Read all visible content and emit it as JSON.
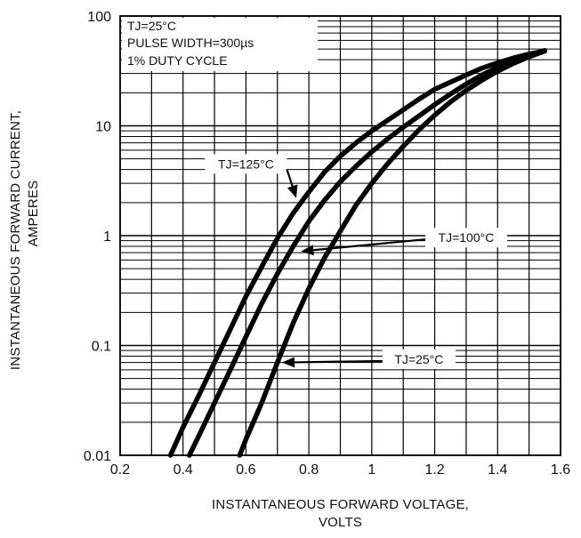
{
  "chart_data": {
    "type": "line",
    "title": "",
    "xlabel_line1": "INSTANTANEOUS FORWARD VOLTAGE,",
    "xlabel_line2": "VOLTS",
    "ylabel_line1": "INSTANTANEOUS FORWARD CURRENT,",
    "ylabel_line2": "AMPERES",
    "xlim": [
      0.2,
      1.6
    ],
    "ylim": [
      0.01,
      100
    ],
    "y_scale": "log",
    "grid": true,
    "x_ticks": [
      "0.2",
      "0.4",
      "0.6",
      "0.8",
      "1",
      "1.2",
      "1.4",
      "1.6"
    ],
    "x_tick_values": [
      0.2,
      0.4,
      0.6,
      0.8,
      1.0,
      1.2,
      1.4,
      1.6
    ],
    "y_ticks": [
      "0.01",
      "0.1",
      "1",
      "10",
      "100"
    ],
    "y_tick_values": [
      0.01,
      0.1,
      1,
      10,
      100
    ],
    "conditions": {
      "line1": "TJ=25°C",
      "line2": "PULSE WIDTH=300µs",
      "line3": "1% DUTY CYCLE"
    },
    "series": [
      {
        "name": "TJ=125°C",
        "label_text": "TJ=125°C",
        "x": [
          0.36,
          0.4,
          0.45,
          0.5,
          0.55,
          0.6,
          0.65,
          0.7,
          0.75,
          0.8,
          0.85,
          0.9,
          0.95,
          1.0,
          1.05,
          1.1,
          1.15,
          1.2,
          1.25,
          1.3,
          1.35,
          1.4,
          1.45,
          1.5,
          1.55
        ],
        "y": [
          0.01,
          0.018,
          0.035,
          0.07,
          0.14,
          0.28,
          0.52,
          0.95,
          1.6,
          2.5,
          3.8,
          5.3,
          7.0,
          9.0,
          11.2,
          14.0,
          17.5,
          21.5,
          25.0,
          29.0,
          33.5,
          37.5,
          41.5,
          45.0,
          48.0
        ],
        "annotation_point": [
          0.76,
          2.2
        ],
        "label_anchor": [
          0.6,
          4.5
        ]
      },
      {
        "name": "TJ=100°C",
        "label_text": "TJ=100°C",
        "x": [
          0.42,
          0.45,
          0.5,
          0.55,
          0.6,
          0.65,
          0.7,
          0.75,
          0.8,
          0.85,
          0.9,
          0.95,
          1.0,
          1.05,
          1.1,
          1.15,
          1.2,
          1.25,
          1.3,
          1.35,
          1.4,
          1.45,
          1.5,
          1.55
        ],
        "y": [
          0.01,
          0.015,
          0.03,
          0.06,
          0.12,
          0.24,
          0.45,
          0.8,
          1.35,
          2.1,
          3.1,
          4.3,
          5.8,
          7.6,
          9.7,
          12.3,
          15.6,
          19.5,
          24.0,
          29.0,
          34.0,
          39.0,
          44.0,
          48.5
        ],
        "annotation_point": [
          0.775,
          0.72
        ],
        "label_anchor": [
          1.3,
          0.96
        ]
      },
      {
        "name": "TJ=25°C",
        "label_text": "TJ=25°C",
        "x": [
          0.58,
          0.6,
          0.65,
          0.7,
          0.75,
          0.8,
          0.85,
          0.9,
          0.95,
          1.0,
          1.05,
          1.1,
          1.15,
          1.2,
          1.25,
          1.3,
          1.35,
          1.4,
          1.45,
          1.5,
          1.55
        ],
        "y": [
          0.01,
          0.014,
          0.03,
          0.07,
          0.16,
          0.33,
          0.63,
          1.1,
          1.9,
          3.0,
          4.5,
          6.5,
          9.2,
          12.5,
          16.5,
          21.0,
          26.0,
          31.5,
          37.0,
          42.5,
          48.0
        ],
        "annotation_point": [
          0.715,
          0.07
        ],
        "label_anchor": [
          1.15,
          0.075
        ]
      }
    ]
  }
}
